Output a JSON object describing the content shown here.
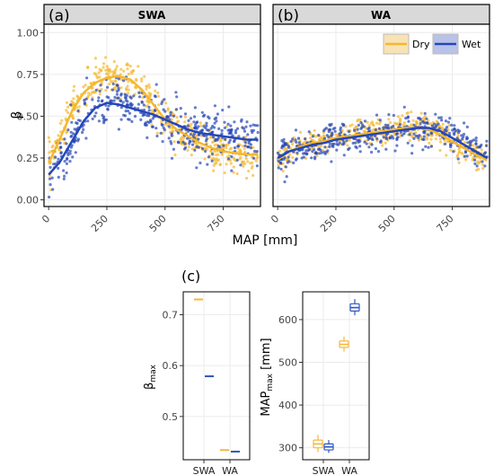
{
  "figure": {
    "y_axis_label": "β",
    "x_axis_label": "MAP [mm]",
    "panel_c_label": "(c)"
  },
  "colors": {
    "dry": "#F5B82E",
    "wet": "#2446B8",
    "dry_fill": "#F7E3B5",
    "wet_fill": "#B9C3E8",
    "strip": "#D9D9D9",
    "grid": "#EBEBEB",
    "dry_box": "#F3B93A",
    "wet_box": "#2D55C4"
  },
  "chart_data": [
    {
      "type": "scatter",
      "panel": "(a)",
      "strip_label": "SWA",
      "xlim": [
        -20,
        910
      ],
      "ylim": [
        -0.04,
        1.05
      ],
      "x_ticks": [
        0,
        250,
        500,
        750
      ],
      "x_tick_labels": [
        "0",
        "250",
        "500",
        "750"
      ],
      "y_ticks": [
        0.0,
        0.25,
        0.5,
        0.75,
        1.0
      ],
      "y_tick_labels": [
        "0.00",
        "0.25",
        "0.50",
        "0.75",
        "1.00"
      ],
      "grid": true,
      "smooth": [
        {
          "color_key": "dry",
          "x": [
            0,
            50,
            100,
            150,
            200,
            250,
            300,
            350,
            400,
            450,
            500,
            550,
            600,
            650,
            700,
            750,
            800,
            850,
            900
          ],
          "y": [
            0.22,
            0.37,
            0.53,
            0.64,
            0.7,
            0.73,
            0.74,
            0.72,
            0.66,
            0.57,
            0.48,
            0.42,
            0.38,
            0.34,
            0.31,
            0.29,
            0.28,
            0.27,
            0.27
          ]
        },
        {
          "color_key": "wet",
          "x": [
            0,
            50,
            100,
            150,
            200,
            250,
            300,
            350,
            400,
            450,
            500,
            550,
            600,
            650,
            700,
            750,
            800,
            850,
            900
          ],
          "y": [
            0.15,
            0.23,
            0.35,
            0.47,
            0.55,
            0.58,
            0.57,
            0.55,
            0.53,
            0.51,
            0.48,
            0.45,
            0.42,
            0.4,
            0.39,
            0.38,
            0.37,
            0.36,
            0.36
          ]
        }
      ],
      "scatter": [
        {
          "color_key": "dry",
          "count": 450,
          "spread": 0.055,
          "x_range": [
            0,
            900
          ]
        },
        {
          "color_key": "wet",
          "count": 450,
          "spread": 0.075,
          "x_range": [
            0,
            900
          ]
        }
      ]
    },
    {
      "type": "scatter",
      "panel": "(b)",
      "strip_label": "WA",
      "xlim": [
        -20,
        910
      ],
      "ylim": [
        -0.04,
        1.05
      ],
      "x_ticks": [
        0,
        250,
        500,
        750
      ],
      "x_tick_labels": [
        "0",
        "250",
        "500",
        "750"
      ],
      "grid": true,
      "legend": {
        "position": "top-right",
        "entries": [
          {
            "name": "Dry",
            "color_key": "dry"
          },
          {
            "name": "Wet",
            "color_key": "wet"
          }
        ]
      },
      "smooth": [
        {
          "color_key": "dry",
          "x": [
            0,
            50,
            100,
            150,
            200,
            250,
            300,
            350,
            400,
            450,
            500,
            550,
            600,
            650,
            700,
            750,
            800,
            850,
            900
          ],
          "y": [
            0.24,
            0.29,
            0.32,
            0.34,
            0.35,
            0.37,
            0.38,
            0.39,
            0.4,
            0.41,
            0.42,
            0.43,
            0.43,
            0.42,
            0.39,
            0.35,
            0.31,
            0.27,
            0.24
          ]
        },
        {
          "color_key": "wet",
          "x": [
            0,
            50,
            100,
            150,
            200,
            250,
            300,
            350,
            400,
            450,
            500,
            550,
            600,
            650,
            700,
            750,
            800,
            850,
            900
          ],
          "y": [
            0.25,
            0.29,
            0.31,
            0.33,
            0.34,
            0.36,
            0.37,
            0.38,
            0.39,
            0.4,
            0.41,
            0.42,
            0.43,
            0.43,
            0.41,
            0.37,
            0.33,
            0.29,
            0.25
          ]
        }
      ],
      "scatter": [
        {
          "color_key": "dry",
          "count": 420,
          "spread": 0.04,
          "x_range": [
            0,
            900
          ]
        },
        {
          "color_key": "wet",
          "count": 420,
          "spread": 0.05,
          "x_range": [
            0,
            900
          ]
        }
      ]
    },
    {
      "type": "box",
      "panel": "(c)",
      "y_label_main": "β",
      "y_label_sub": "max",
      "categories": [
        "SWA",
        "WA"
      ],
      "ylim": [
        0.415,
        0.745
      ],
      "y_ticks": [
        0.5,
        0.6,
        0.7
      ],
      "y_tick_labels": [
        "0.5",
        "0.6",
        "0.7"
      ],
      "grid": true,
      "series": [
        {
          "name": "Dry",
          "color_key": "dry_box",
          "values": [
            0.73,
            0.434
          ]
        },
        {
          "name": "Wet",
          "color_key": "wet_box",
          "values": [
            0.579,
            0.431
          ]
        }
      ]
    },
    {
      "type": "box",
      "panel": "(c)",
      "y_label_main": "MAP",
      "y_label_sub": "max",
      "y_label_tail": " [mm]",
      "categories": [
        "SWA",
        "WA"
      ],
      "ylim": [
        272,
        665
      ],
      "y_ticks": [
        300,
        400,
        500,
        600
      ],
      "y_tick_labels": [
        "300",
        "400",
        "500",
        "600"
      ],
      "grid": true,
      "series": [
        {
          "name": "Dry",
          "color_key": "dry_box",
          "boxes": [
            {
              "min": 290,
              "q1": 300,
              "median": 309,
              "q3": 318,
              "max": 330
            },
            {
              "min": 525,
              "q1": 535,
              "median": 542,
              "q3": 550,
              "max": 560
            }
          ]
        },
        {
          "name": "Wet",
          "color_key": "wet_box",
          "boxes": [
            {
              "min": 288,
              "q1": 295,
              "median": 302,
              "q3": 309,
              "max": 318
            },
            {
              "min": 610,
              "q1": 620,
              "median": 628,
              "q3": 637,
              "max": 648
            }
          ]
        }
      ]
    }
  ]
}
